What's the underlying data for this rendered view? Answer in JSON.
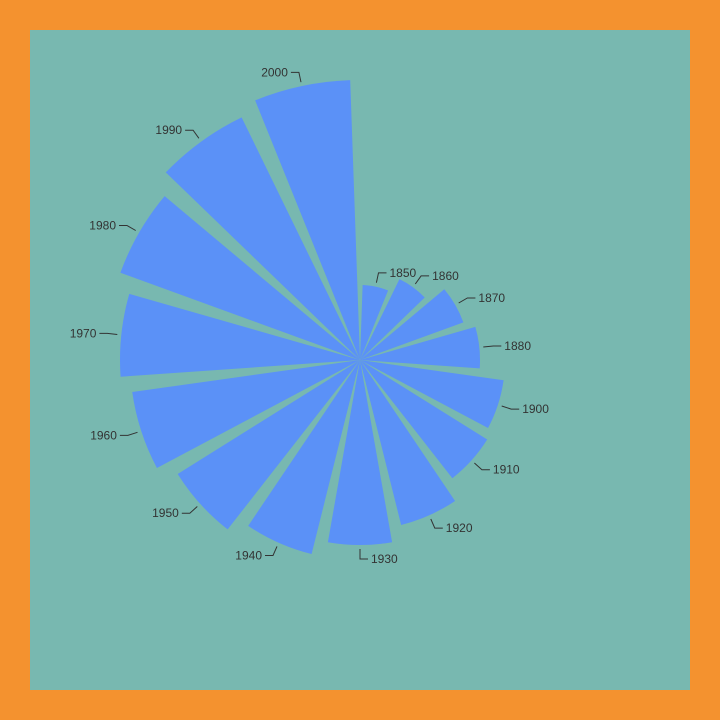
{
  "colors": {
    "background": "#F4922F",
    "panel": "#78B8B0",
    "slice": "#5B91F7",
    "text": "#333333"
  },
  "chart_data": {
    "type": "pie",
    "variant": "polar-area (nightingale rose)",
    "title": "",
    "categories": [
      "1850",
      "1860",
      "1870",
      "1880",
      "1900",
      "1910",
      "1920",
      "1930",
      "1940",
      "1950",
      "1960",
      "1970",
      "1980",
      "1990",
      "2000"
    ],
    "values": [
      75,
      90,
      110,
      120,
      145,
      150,
      170,
      185,
      200,
      215,
      230,
      240,
      255,
      270,
      280
    ],
    "radial_scale": "linear",
    "legend": "none",
    "grid": false
  }
}
